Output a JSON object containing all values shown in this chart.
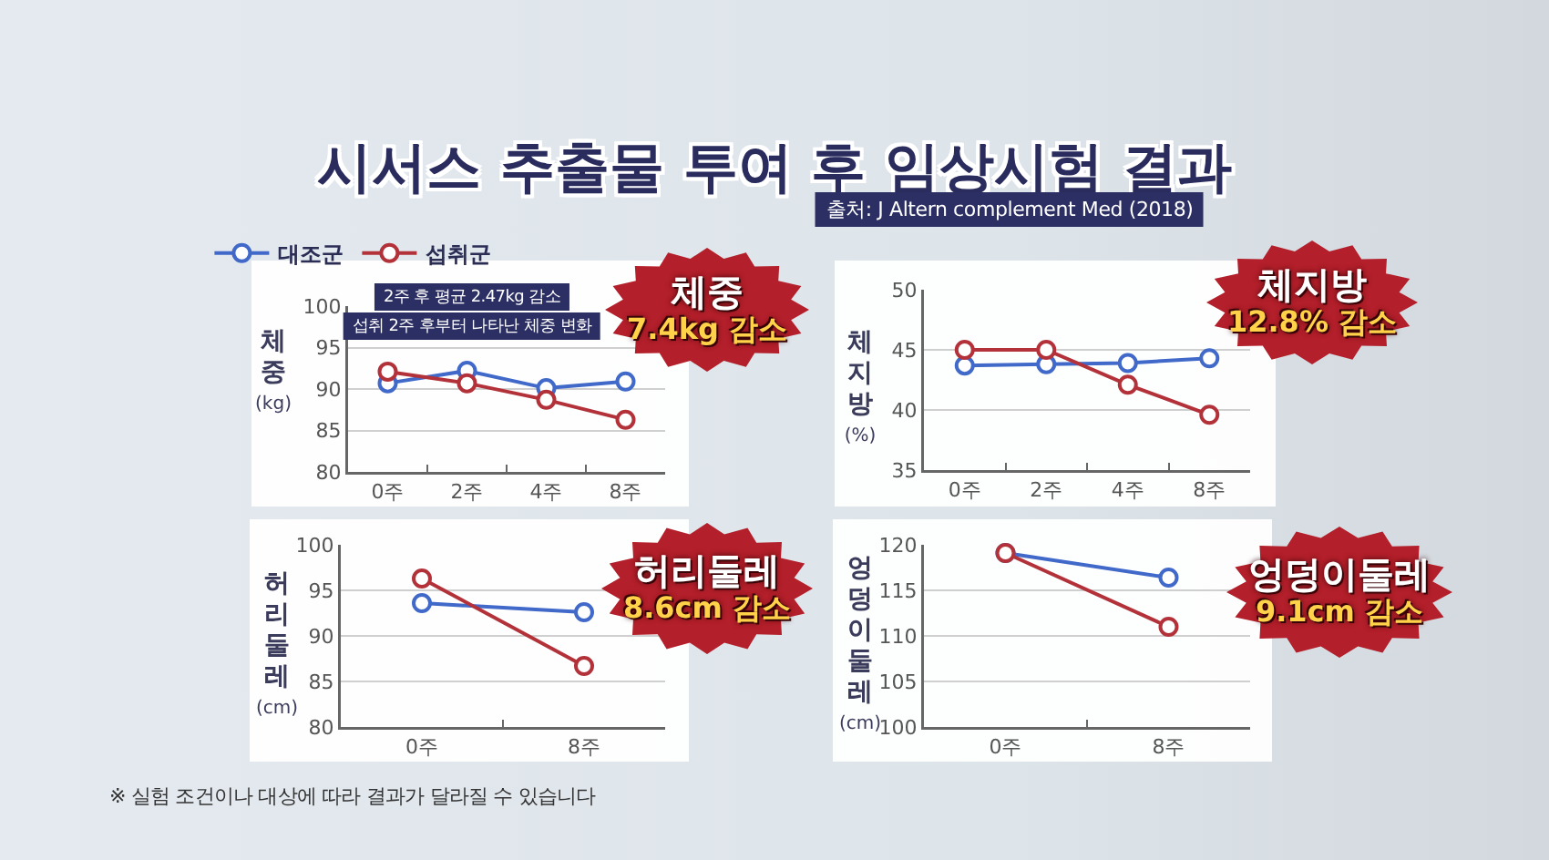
{
  "chart_data": [
    {
      "type": "line",
      "title": "시서스 추출물 투여 후 임상시험 결과",
      "ylabel": "체\n중\n(kg)",
      "categories": [
        "0주",
        "2주",
        "4주",
        "8주"
      ],
      "series": [
        {
          "name": "대조군",
          "color": "#4169c9",
          "values": [
            90.7,
            92.2,
            90.1,
            90.9
          ]
        },
        {
          "name": "섭취군",
          "color": "#b3323a",
          "values": [
            92.1,
            90.7,
            88.7,
            86.3
          ]
        }
      ],
      "ylim": [
        80,
        100
      ],
      "yticks": [
        80,
        85,
        90,
        95,
        100
      ],
      "grid": "y",
      "legend": "top left",
      "marker": "circle",
      "line_style": "solid",
      "annotations": [
        "2주 후 평균 2.47kg 감소",
        "섭취 2주 후부터 나타난 체중 변화",
        "체중\n7.4kg 감소"
      ]
    },
    {
      "type": "line",
      "ylabel": "체\n지\n방\n(%)",
      "categories": [
        "0주",
        "2주",
        "4주",
        "8주"
      ],
      "series": [
        {
          "color": "#4169c9",
          "values": [
            43.7,
            43.8,
            43.9,
            44.3
          ]
        },
        {
          "color": "#b3323a",
          "values": [
            45.0,
            45.0,
            42.1,
            39.6
          ]
        }
      ],
      "ylim": [
        35,
        50
      ],
      "yticks": [
        35,
        40,
        45,
        50
      ],
      "grid": "y",
      "marker": "circle",
      "line_style": "solid",
      "annotations": [
        "출처: J Altern complement Med (2018)",
        "체지방\n12.8% 감소"
      ]
    },
    {
      "type": "line",
      "ylabel": "허\n리\n둘\n레\n(cm)",
      "categories": [
        "0주",
        "8주"
      ],
      "series": [
        {
          "color": "#4169c9",
          "values": [
            93.6,
            92.6
          ]
        },
        {
          "color": "#b3323a",
          "values": [
            96.3,
            86.7
          ]
        }
      ],
      "ylim": [
        80,
        100
      ],
      "yticks": [
        80,
        85,
        90,
        95,
        100
      ],
      "grid": "y",
      "marker": "circle",
      "line_style": "solid",
      "annotations": [
        "허리둘레\n8.6cm 감소",
        "※ 실험 조건이나 대상에 따라 결과가 달라질 수 있습니다"
      ]
    },
    {
      "type": "line",
      "ylabel": "엉\n덩\n이\n둘\n레\n(cm)",
      "categories": [
        "0주",
        "8주"
      ],
      "series": [
        {
          "color": "#4169c9",
          "values": [
            119.1,
            116.4
          ]
        },
        {
          "color": "#b3323a",
          "values": [
            119.1,
            111.0
          ]
        }
      ],
      "ylim": [
        100,
        120
      ],
      "yticks": [
        100,
        105,
        110,
        115,
        120
      ],
      "grid": "y",
      "marker": "circle",
      "line_style": "solid",
      "annotations": [
        "엉덩이둘레\n9.1cm 감소"
      ]
    }
  ]
}
